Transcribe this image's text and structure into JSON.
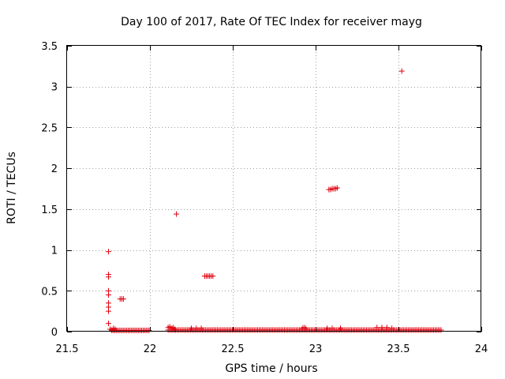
{
  "chart_data": {
    "type": "scatter",
    "title": "Day 100 of 2017, Rate Of TEC Index for receiver mayg",
    "xlabel": "GPS time / hours",
    "ylabel": "ROTI / TECUs",
    "xlim": [
      21.5,
      24
    ],
    "ylim": [
      0,
      3.5
    ],
    "xticks": [
      21.5,
      22,
      22.5,
      23,
      23.5,
      24
    ],
    "xtick_labels": [
      "21.5",
      "22",
      "22.5",
      "23",
      "23.5",
      "24"
    ],
    "yticks": [
      0,
      0.5,
      1,
      1.5,
      2,
      2.5,
      3,
      3.5
    ],
    "ytick_labels": [
      "0",
      "0.5",
      "1",
      "1.5",
      "2",
      "2.5",
      "3",
      "3.5"
    ],
    "grid": true,
    "marker": "plus",
    "color": "#e0000f",
    "baseline_segments": [
      {
        "x_start": 21.77,
        "x_end": 22.0,
        "step": 0.009,
        "y": 0.015
      },
      {
        "x_start": 22.11,
        "x_end": 23.76,
        "step": 0.009,
        "y": 0.02
      }
    ],
    "points": [
      [
        21.75,
        0.98
      ],
      [
        21.75,
        0.7
      ],
      [
        21.75,
        0.67
      ],
      [
        21.75,
        0.5
      ],
      [
        21.75,
        0.45
      ],
      [
        21.75,
        0.35
      ],
      [
        21.75,
        0.3
      ],
      [
        21.75,
        0.25
      ],
      [
        21.75,
        0.1
      ],
      [
        21.76,
        0.03
      ],
      [
        21.77,
        0.02
      ],
      [
        21.78,
        0.04
      ],
      [
        21.79,
        0.03
      ],
      [
        21.82,
        0.4
      ],
      [
        21.83,
        0.4
      ],
      [
        21.84,
        0.4
      ],
      [
        22.11,
        0.05
      ],
      [
        22.12,
        0.06
      ],
      [
        22.13,
        0.04
      ],
      [
        22.14,
        0.05
      ],
      [
        22.15,
        0.03
      ],
      [
        22.16,
        1.44
      ],
      [
        22.33,
        0.68
      ],
      [
        22.34,
        0.68
      ],
      [
        22.35,
        0.68
      ],
      [
        22.36,
        0.68
      ],
      [
        22.37,
        0.68
      ],
      [
        22.38,
        0.68
      ],
      [
        22.25,
        0.04
      ],
      [
        22.28,
        0.04
      ],
      [
        22.31,
        0.04
      ],
      [
        22.92,
        0.04
      ],
      [
        22.93,
        0.05
      ],
      [
        22.94,
        0.04
      ],
      [
        23.07,
        0.04
      ],
      [
        23.1,
        0.04
      ],
      [
        23.15,
        0.04
      ],
      [
        23.08,
        1.74
      ],
      [
        23.09,
        1.74
      ],
      [
        23.1,
        1.75
      ],
      [
        23.11,
        1.75
      ],
      [
        23.12,
        1.75
      ],
      [
        23.13,
        1.76
      ],
      [
        23.37,
        0.05
      ],
      [
        23.4,
        0.05
      ],
      [
        23.43,
        0.05
      ],
      [
        23.46,
        0.04
      ],
      [
        23.52,
        3.19
      ]
    ]
  }
}
